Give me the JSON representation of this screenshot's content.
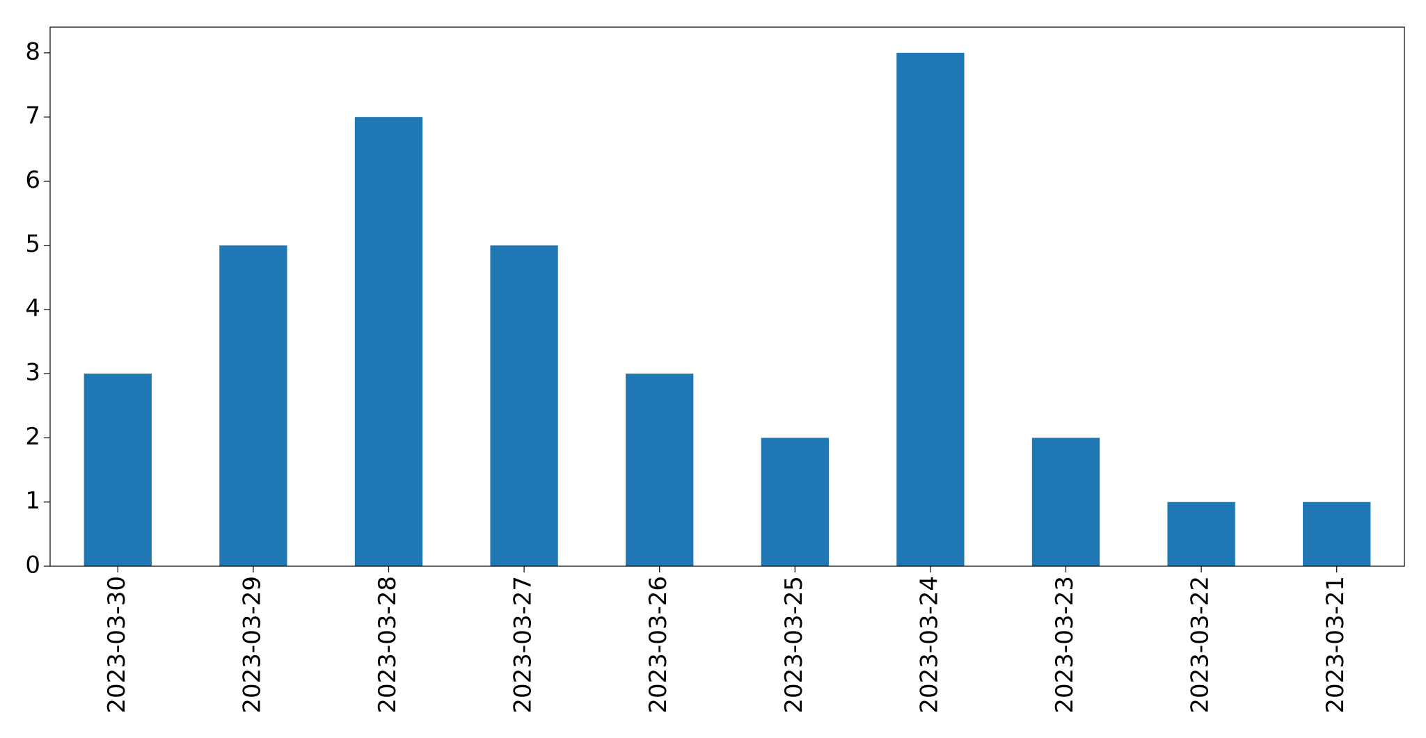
{
  "chart_data": {
    "type": "bar",
    "categories": [
      "2023-03-30",
      "2023-03-29",
      "2023-03-28",
      "2023-03-27",
      "2023-03-26",
      "2023-03-25",
      "2023-03-24",
      "2023-03-23",
      "2023-03-22",
      "2023-03-21"
    ],
    "values": [
      3,
      5,
      7,
      5,
      3,
      2,
      8,
      2,
      1,
      1
    ],
    "color": "#1f77b4",
    "ylim": [
      0,
      8.4
    ],
    "yticks": [
      0,
      1,
      2,
      3,
      4,
      5,
      6,
      7,
      8
    ],
    "grid": false
  }
}
